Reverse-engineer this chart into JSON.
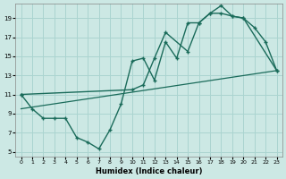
{
  "xlabel": "Humidex (Indice chaleur)",
  "bg_color": "#cce8e4",
  "grid_color": "#aad4d0",
  "line_color": "#1a6b5a",
  "xlim": [
    -0.5,
    23.5
  ],
  "ylim": [
    4.5,
    20.5
  ],
  "xticks": [
    0,
    1,
    2,
    3,
    4,
    5,
    6,
    7,
    8,
    9,
    10,
    11,
    12,
    13,
    14,
    15,
    16,
    17,
    18,
    19,
    20,
    21,
    22,
    23
  ],
  "yticks": [
    5,
    7,
    9,
    11,
    13,
    15,
    17,
    19
  ],
  "line1_x": [
    0,
    1,
    2,
    3,
    4,
    5,
    6,
    7,
    8,
    9,
    10,
    11,
    12,
    13,
    14,
    15,
    16,
    17,
    18,
    19,
    20,
    21,
    22,
    23
  ],
  "line1_y": [
    11.0,
    9.5,
    8.5,
    8.5,
    8.5,
    6.5,
    6.0,
    5.3,
    7.3,
    10.0,
    14.5,
    14.8,
    12.5,
    16.5,
    14.8,
    18.5,
    18.5,
    19.5,
    19.5,
    19.2,
    19.0,
    18.0,
    16.5,
    13.5
  ],
  "line2_x": [
    0,
    10,
    11,
    12,
    13,
    15,
    16,
    17,
    18,
    19,
    20,
    23
  ],
  "line2_y": [
    11.0,
    11.5,
    12.0,
    14.8,
    17.5,
    15.5,
    18.5,
    19.5,
    20.3,
    19.2,
    19.0,
    13.5
  ],
  "line3_x": [
    0,
    23
  ],
  "line3_y": [
    9.5,
    13.5
  ]
}
